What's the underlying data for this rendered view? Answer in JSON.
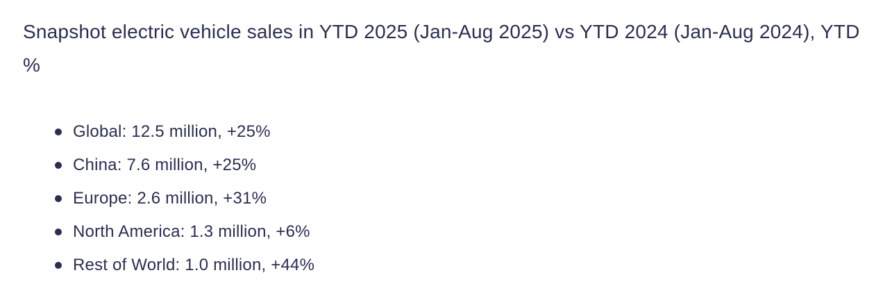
{
  "page": {
    "background_color": "#ffffff",
    "text_color": "#2a2e51"
  },
  "heading": {
    "text": "Snapshot electric vehicle sales in YTD 2025 (Jan-Aug 2025) vs YTD 2024 (Jan-Aug 2024), YTD %"
  },
  "ev_sales_list": {
    "items": [
      {
        "region": "Global",
        "sales": "12.5 million",
        "yoy_change": "+25%",
        "text": "Global: 12.5 million, +25%"
      },
      {
        "region": "China",
        "sales": "7.6 million",
        "yoy_change": "+25%",
        "text": "China: 7.6 million, +25%"
      },
      {
        "region": "Europe",
        "sales": "2.6 million",
        "yoy_change": "+31%",
        "text": "Europe: 2.6 million, +31%"
      },
      {
        "region": "North America",
        "sales": "1.3 million",
        "yoy_change": "+6%",
        "text": "North America: 1.3 million, +6%"
      },
      {
        "region": "Rest of World",
        "sales": "1.0 million",
        "yoy_change": "+44%",
        "text": "Rest of World: 1.0 million, +44%"
      }
    ]
  }
}
